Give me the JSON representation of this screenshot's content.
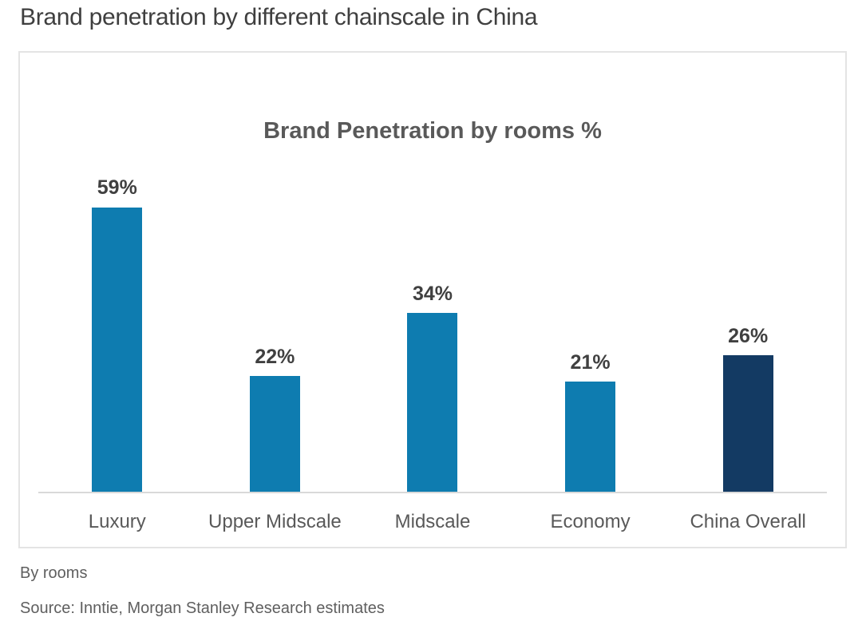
{
  "page": {
    "title": "Brand penetration by different chainscale in China",
    "footnote": "By rooms",
    "source": "Source: Inntie, Morgan Stanley Research estimates"
  },
  "chart_data": {
    "type": "bar",
    "title": "Brand Penetration by rooms %",
    "categories": [
      "Luxury",
      "Upper Midscale",
      "Midscale",
      "Economy",
      "China Overall"
    ],
    "values": [
      59,
      22,
      34,
      21,
      26
    ],
    "value_labels": [
      "59%",
      "22%",
      "34%",
      "21%",
      "26%"
    ],
    "series": [
      {
        "name": "Brand penetration by rooms",
        "values": [
          59,
          22,
          34,
          21,
          26
        ]
      }
    ],
    "xlabel": "",
    "ylabel": "",
    "ylim": [
      0,
      60
    ],
    "grid": false,
    "legend": false,
    "highlight_category": "China Overall",
    "bar_colors": [
      "#0e7cb0",
      "#0e7cb0",
      "#0e7cb0",
      "#0e7cb0",
      "#133a63"
    ],
    "colors": {
      "bar_default": "#0e7cb0",
      "bar_highlight": "#133a63",
      "axis_line": "#d9d9d9",
      "card_border": "#e4e4e4",
      "value_label": "#404040",
      "category_label": "#595959",
      "title_text": "#3f3f3f"
    }
  }
}
